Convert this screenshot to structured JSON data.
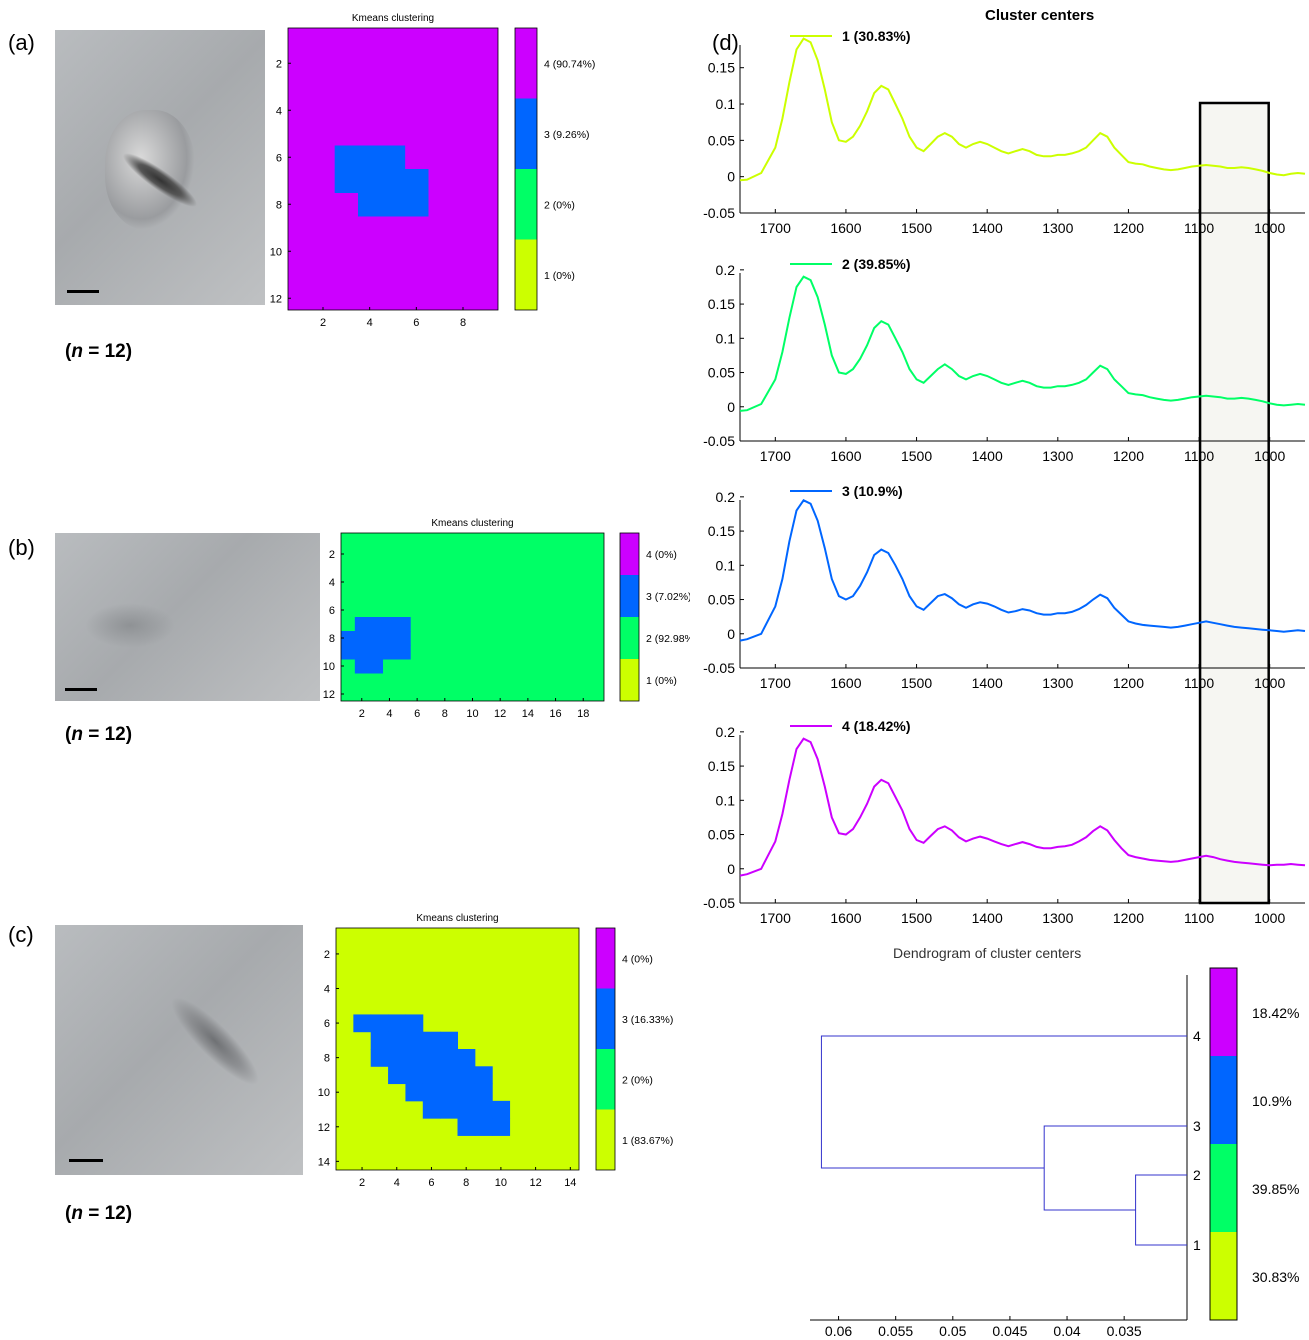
{
  "panels": {
    "a": {
      "letter": "(a)",
      "n_label": "n",
      "n_value": "= 12)",
      "n_open": "(",
      "heatmap_title": "Kmeans clustering",
      "grid": {
        "cols": 9,
        "rows": 12
      },
      "background_cluster": 4,
      "blue_cells": [
        [
          6,
          3
        ],
        [
          6,
          4
        ],
        [
          6,
          5
        ],
        [
          7,
          3
        ],
        [
          7,
          4
        ],
        [
          7,
          5
        ],
        [
          7,
          6
        ],
        [
          8,
          4
        ],
        [
          8,
          5
        ],
        [
          8,
          6
        ]
      ],
      "x_ticks": [
        "2",
        "4",
        "6",
        "8"
      ],
      "y_ticks": [
        "2",
        "4",
        "6",
        "8",
        "10",
        "12"
      ],
      "colorbar": [
        "4 (90.74%)",
        "3 (9.26%)",
        "2 (0%)",
        "1 (0%)"
      ]
    },
    "b": {
      "letter": "(b)",
      "n_label": "n",
      "n_value": "= 12)",
      "n_open": "(",
      "heatmap_title": "Kmeans clustering",
      "grid": {
        "cols": 19,
        "rows": 12
      },
      "background_cluster": 2,
      "blue_cells": [
        [
          7,
          2
        ],
        [
          7,
          3
        ],
        [
          7,
          4
        ],
        [
          7,
          5
        ],
        [
          8,
          1
        ],
        [
          8,
          2
        ],
        [
          8,
          3
        ],
        [
          8,
          4
        ],
        [
          8,
          5
        ],
        [
          9,
          1
        ],
        [
          9,
          2
        ],
        [
          9,
          3
        ],
        [
          9,
          4
        ],
        [
          9,
          5
        ],
        [
          10,
          2
        ],
        [
          10,
          3
        ]
      ],
      "x_ticks": [
        "2",
        "4",
        "6",
        "8",
        "10",
        "12",
        "14",
        "16",
        "18"
      ],
      "y_ticks": [
        "2",
        "4",
        "6",
        "8",
        "10",
        "12"
      ],
      "colorbar": [
        "4 (0%)",
        "3 (7.02%)",
        "2 (92.98%)",
        "1 (0%)"
      ]
    },
    "c": {
      "letter": "(c)",
      "n_label": "n",
      "n_value": "= 12)",
      "n_open": "(",
      "heatmap_title": "Kmeans clustering",
      "grid": {
        "cols": 14,
        "rows": 14
      },
      "background_cluster": 1,
      "blue_cells": [
        [
          6,
          2
        ],
        [
          6,
          3
        ],
        [
          6,
          4
        ],
        [
          6,
          5
        ],
        [
          7,
          3
        ],
        [
          7,
          4
        ],
        [
          7,
          5
        ],
        [
          7,
          6
        ],
        [
          7,
          7
        ],
        [
          8,
          3
        ],
        [
          8,
          4
        ],
        [
          8,
          5
        ],
        [
          8,
          6
        ],
        [
          8,
          7
        ],
        [
          8,
          8
        ],
        [
          9,
          4
        ],
        [
          9,
          5
        ],
        [
          9,
          6
        ],
        [
          9,
          7
        ],
        [
          9,
          8
        ],
        [
          9,
          9
        ],
        [
          10,
          5
        ],
        [
          10,
          6
        ],
        [
          10,
          7
        ],
        [
          10,
          8
        ],
        [
          10,
          9
        ],
        [
          11,
          6
        ],
        [
          11,
          7
        ],
        [
          11,
          8
        ],
        [
          11,
          9
        ],
        [
          11,
          10
        ],
        [
          12,
          8
        ],
        [
          12,
          9
        ],
        [
          12,
          10
        ]
      ],
      "x_ticks": [
        "2",
        "4",
        "6",
        "8",
        "10",
        "12",
        "14"
      ],
      "y_ticks": [
        "2",
        "4",
        "6",
        "8",
        "10",
        "12",
        "14"
      ],
      "colorbar": [
        "4 (0%)",
        "3 (16.33%)",
        "2 (0%)",
        "1 (83.67%)"
      ]
    }
  },
  "colors": {
    "c1": "#ccff00",
    "c2": "#00ff66",
    "c3": "#0066ff",
    "c4": "#cc00ff",
    "dendro": "#3333cc",
    "highlight_box": "#f6f6f2"
  },
  "panel_d": {
    "letter": "(d)",
    "title": "Cluster centers",
    "x_ticks": [
      "1700",
      "1600",
      "1500",
      "1400",
      "1300",
      "1200",
      "1100",
      "1000"
    ],
    "subplots": [
      {
        "legend": "1 (30.83%)",
        "color_key": "c1",
        "y_ticks": [
          "0.15",
          "0.1",
          "0.05",
          "0",
          "-0.05"
        ]
      },
      {
        "legend": "2 (39.85%)",
        "color_key": "c2",
        "y_ticks": [
          "0.2",
          "0.15",
          "0.1",
          "0.05",
          "0",
          "-0.05"
        ]
      },
      {
        "legend": "3 (10.9%)",
        "color_key": "c3",
        "y_ticks": [
          "0.2",
          "0.15",
          "0.1",
          "0.05",
          "0",
          "-0.05"
        ]
      },
      {
        "legend": "4 (18.42%)",
        "color_key": "c4",
        "y_ticks": [
          "0.2",
          "0.15",
          "0.1",
          "0.05",
          "0",
          "-0.05"
        ]
      }
    ]
  },
  "dendrogram": {
    "title": "Dendrogram of cluster centers",
    "leaf_labels": [
      "4",
      "3",
      "2",
      "1"
    ],
    "x_ticks": [
      "0.06",
      "0.055",
      "0.05",
      "0.045",
      "0.04",
      "0.035"
    ],
    "colorbar_labels": [
      "18.42%",
      "10.9%",
      "39.85%",
      "30.83%"
    ]
  },
  "chart_data": {
    "type": "line",
    "title": "Cluster centers",
    "xlabel": "",
    "ylabel": "",
    "xlim": [
      1750,
      950
    ],
    "highlight_region": [
      1100,
      1000
    ],
    "x": [
      1750,
      1740,
      1720,
      1700,
      1690,
      1680,
      1670,
      1660,
      1650,
      1640,
      1630,
      1620,
      1610,
      1600,
      1590,
      1580,
      1570,
      1560,
      1550,
      1540,
      1530,
      1520,
      1510,
      1500,
      1490,
      1480,
      1470,
      1460,
      1450,
      1440,
      1430,
      1420,
      1410,
      1400,
      1390,
      1380,
      1370,
      1360,
      1350,
      1340,
      1330,
      1320,
      1310,
      1300,
      1290,
      1280,
      1270,
      1260,
      1250,
      1240,
      1230,
      1220,
      1210,
      1200,
      1190,
      1180,
      1170,
      1160,
      1150,
      1140,
      1130,
      1120,
      1110,
      1100,
      1090,
      1080,
      1070,
      1060,
      1050,
      1040,
      1030,
      1020,
      1010,
      1000,
      990,
      980,
      970,
      960,
      950
    ],
    "series": [
      {
        "name": "1 (30.83%)",
        "ylim": [
          -0.05,
          0.19
        ],
        "values": [
          -0.005,
          -0.004,
          0.005,
          0.04,
          0.08,
          0.13,
          0.175,
          0.19,
          0.185,
          0.16,
          0.12,
          0.075,
          0.05,
          0.048,
          0.055,
          0.07,
          0.09,
          0.115,
          0.125,
          0.12,
          0.1,
          0.08,
          0.055,
          0.04,
          0.035,
          0.045,
          0.055,
          0.06,
          0.055,
          0.045,
          0.04,
          0.045,
          0.048,
          0.045,
          0.04,
          0.035,
          0.032,
          0.035,
          0.038,
          0.035,
          0.03,
          0.028,
          0.028,
          0.03,
          0.03,
          0.032,
          0.035,
          0.04,
          0.05,
          0.06,
          0.055,
          0.04,
          0.03,
          0.02,
          0.018,
          0.017,
          0.014,
          0.012,
          0.01,
          0.009,
          0.01,
          0.012,
          0.014,
          0.015,
          0.016,
          0.015,
          0.014,
          0.012,
          0.012,
          0.013,
          0.012,
          0.01,
          0.008,
          0.005,
          0.003,
          0.002,
          0.004,
          0.005,
          0.004
        ]
      },
      {
        "name": "2 (39.85%)",
        "ylim": [
          -0.05,
          0.2
        ],
        "values": [
          -0.006,
          -0.005,
          0.004,
          0.04,
          0.08,
          0.13,
          0.175,
          0.19,
          0.185,
          0.16,
          0.12,
          0.075,
          0.05,
          0.048,
          0.055,
          0.07,
          0.09,
          0.115,
          0.125,
          0.12,
          0.1,
          0.08,
          0.055,
          0.04,
          0.035,
          0.045,
          0.055,
          0.062,
          0.055,
          0.045,
          0.04,
          0.045,
          0.048,
          0.045,
          0.04,
          0.035,
          0.032,
          0.035,
          0.038,
          0.035,
          0.03,
          0.028,
          0.028,
          0.03,
          0.03,
          0.032,
          0.035,
          0.04,
          0.05,
          0.06,
          0.055,
          0.04,
          0.03,
          0.02,
          0.018,
          0.017,
          0.014,
          0.012,
          0.01,
          0.009,
          0.01,
          0.012,
          0.014,
          0.015,
          0.016,
          0.015,
          0.014,
          0.012,
          0.012,
          0.013,
          0.012,
          0.01,
          0.008,
          0.005,
          0.003,
          0.002,
          0.003,
          0.004,
          0.003
        ]
      },
      {
        "name": "3 (10.9%)",
        "ylim": [
          -0.05,
          0.2
        ],
        "values": [
          -0.01,
          -0.008,
          0.0,
          0.04,
          0.08,
          0.135,
          0.18,
          0.195,
          0.19,
          0.165,
          0.125,
          0.08,
          0.055,
          0.05,
          0.055,
          0.07,
          0.09,
          0.115,
          0.123,
          0.118,
          0.1,
          0.08,
          0.055,
          0.04,
          0.035,
          0.045,
          0.055,
          0.058,
          0.052,
          0.043,
          0.038,
          0.043,
          0.046,
          0.044,
          0.04,
          0.035,
          0.031,
          0.033,
          0.036,
          0.034,
          0.03,
          0.028,
          0.028,
          0.03,
          0.03,
          0.032,
          0.036,
          0.042,
          0.05,
          0.057,
          0.052,
          0.038,
          0.028,
          0.018,
          0.015,
          0.013,
          0.012,
          0.011,
          0.01,
          0.009,
          0.01,
          0.012,
          0.014,
          0.016,
          0.018,
          0.016,
          0.014,
          0.012,
          0.01,
          0.009,
          0.008,
          0.007,
          0.006,
          0.005,
          0.004,
          0.003,
          0.004,
          0.005,
          0.004
        ]
      },
      {
        "name": "4 (18.42%)",
        "ylim": [
          -0.05,
          0.2
        ],
        "values": [
          -0.01,
          -0.008,
          0.0,
          0.04,
          0.08,
          0.13,
          0.175,
          0.19,
          0.185,
          0.16,
          0.12,
          0.075,
          0.052,
          0.05,
          0.058,
          0.075,
          0.095,
          0.12,
          0.13,
          0.125,
          0.105,
          0.085,
          0.058,
          0.042,
          0.038,
          0.048,
          0.058,
          0.062,
          0.056,
          0.046,
          0.04,
          0.044,
          0.047,
          0.044,
          0.04,
          0.036,
          0.033,
          0.036,
          0.039,
          0.036,
          0.032,
          0.03,
          0.03,
          0.032,
          0.033,
          0.035,
          0.04,
          0.046,
          0.055,
          0.062,
          0.056,
          0.042,
          0.03,
          0.02,
          0.017,
          0.015,
          0.013,
          0.012,
          0.011,
          0.01,
          0.011,
          0.013,
          0.015,
          0.017,
          0.019,
          0.017,
          0.014,
          0.012,
          0.01,
          0.009,
          0.008,
          0.007,
          0.006,
          0.005,
          0.006,
          0.006,
          0.007,
          0.006,
          0.005
        ]
      }
    ],
    "dendrogram": {
      "type": "dendrogram",
      "leaves": [
        "4",
        "3",
        "2",
        "1"
      ],
      "merges": [
        {
          "a": "2",
          "b": "1",
          "height": 0.034
        },
        {
          "a": "3",
          "b": "(2,1)",
          "height": 0.042
        },
        {
          "a": "4",
          "b": "(3,2,1)",
          "height": 0.0615
        }
      ],
      "xlim": [
        0.062,
        0.03
      ]
    }
  }
}
